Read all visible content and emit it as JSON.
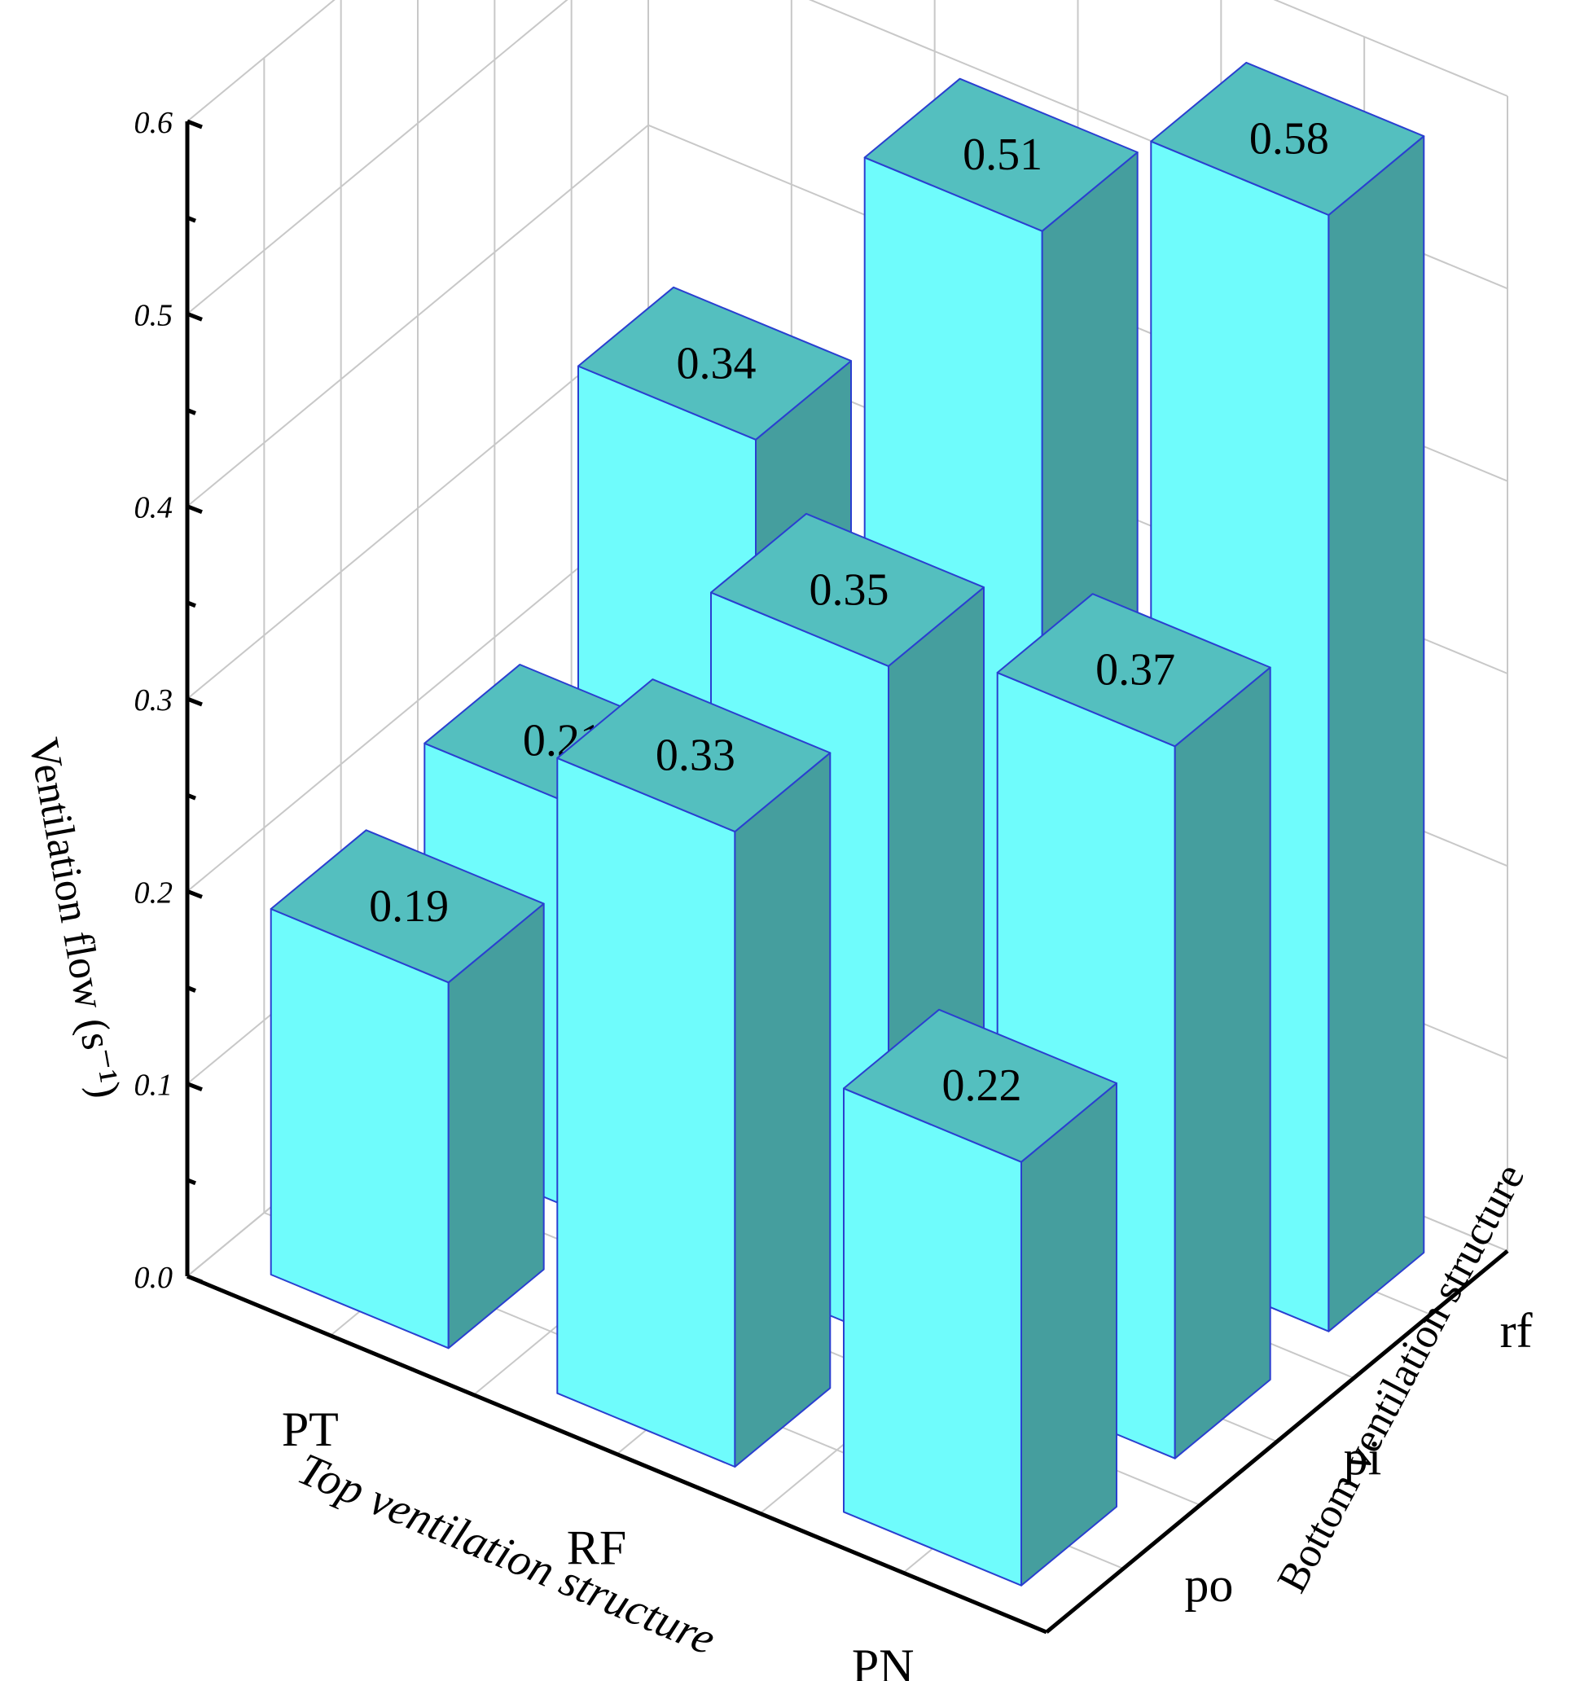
{
  "chart_data": {
    "type": "bar3d",
    "x_categories": [
      "PT",
      "RF",
      "PN"
    ],
    "y_categories": [
      "po",
      "pi",
      "rf"
    ],
    "values": [
      {
        "x": "PT",
        "y": "po",
        "value": 0.19
      },
      {
        "x": "PT",
        "y": "pi",
        "value": 0.21
      },
      {
        "x": "PT",
        "y": "rf",
        "value": 0.34
      },
      {
        "x": "RF",
        "y": "po",
        "value": 0.33
      },
      {
        "x": "RF",
        "y": "pi",
        "value": 0.35
      },
      {
        "x": "RF",
        "y": "rf",
        "value": 0.51
      },
      {
        "x": "PN",
        "y": "po",
        "value": 0.22
      },
      {
        "x": "PN",
        "y": "pi",
        "value": 0.37
      },
      {
        "x": "PN",
        "y": "rf",
        "value": 0.58
      }
    ],
    "value_labels": [
      "0.19",
      "0.21",
      "0.34",
      "0.33",
      "0.35",
      "0.51",
      "0.22",
      "0.37",
      "0.58"
    ],
    "z_ticks": [
      "0.0",
      "0.1",
      "0.2",
      "0.3",
      "0.4",
      "0.5",
      "0.6"
    ],
    "zlim": [
      0,
      0.6
    ],
    "xlabel": "Top ventilation structure",
    "ylabel": "Bottom ventilation structure",
    "zlabel": "Ventilation flow (s⁻¹)",
    "grid": true,
    "colors": {
      "front": "#6ffcfc",
      "top": "#54bfbf",
      "side": "#459e9e",
      "edge": "#2a3fd0"
    }
  }
}
